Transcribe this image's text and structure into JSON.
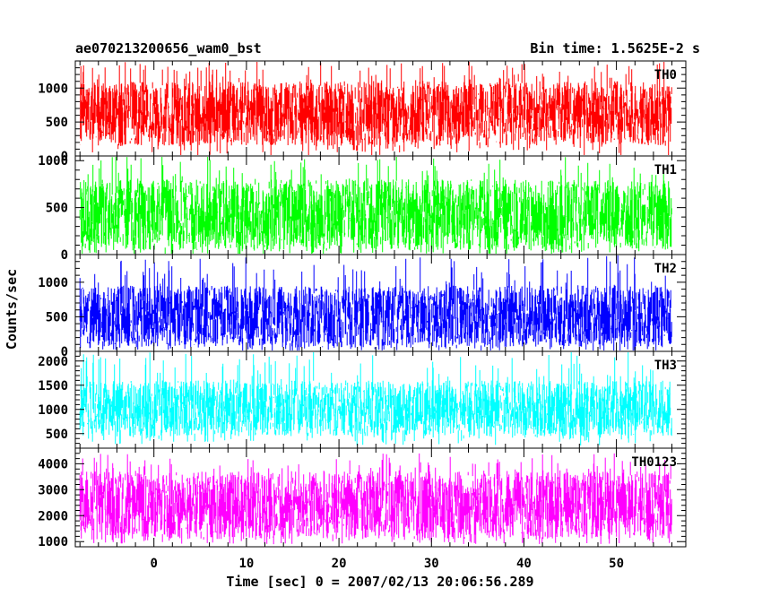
{
  "chart_data": {
    "type": "line",
    "title_left": "ae070213200656_wam0_bst",
    "title_right": "Bin time: 1.5625E-2 s",
    "xlabel": "Time [sec] 0 = 2007/02/13 20:06:56.289",
    "ylabel": "Counts/sec",
    "xlim": [
      -8.5,
      57.5
    ],
    "x_data_range": [
      -8,
      56
    ],
    "xticks": [
      0,
      10,
      20,
      30,
      40,
      50
    ],
    "grid": false,
    "panels": [
      {
        "name": "TH0",
        "color": "#ff0000",
        "ylim": [
          0,
          1400
        ],
        "yticks": [
          0,
          500,
          1000
        ],
        "typical_range": [
          150,
          1100
        ],
        "max_peak": 1400,
        "min_dip": 0
      },
      {
        "name": "TH1",
        "color": "#00ff00",
        "ylim": [
          0,
          1050
        ],
        "yticks": [
          0,
          500,
          1000
        ],
        "typical_range": [
          50,
          800
        ],
        "max_peak": 1050,
        "min_dip": 0
      },
      {
        "name": "TH2",
        "color": "#0000ff",
        "ylim": [
          0,
          1400
        ],
        "yticks": [
          0,
          500,
          1000
        ],
        "typical_range": [
          60,
          950
        ],
        "max_peak": 1400,
        "min_dip": 0
      },
      {
        "name": "TH3",
        "color": "#00ffff",
        "ylim": [
          200,
          2200
        ],
        "yticks": [
          500,
          1000,
          1500,
          2000
        ],
        "typical_range": [
          450,
          1600
        ],
        "max_peak": 2200,
        "min_dip": 250
      },
      {
        "name": "TH0123",
        "color": "#ff00ff",
        "ylim": [
          800,
          4600
        ],
        "yticks": [
          1000,
          2000,
          3000,
          4000
        ],
        "typical_range": [
          1100,
          3700
        ],
        "max_peak": 4400,
        "min_dip": 900
      }
    ]
  }
}
